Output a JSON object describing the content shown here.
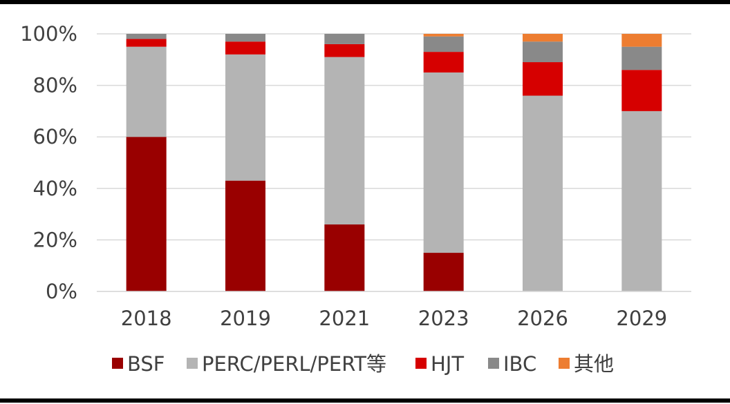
{
  "chart_data": {
    "type": "bar",
    "stacked": true,
    "percent_stacked": true,
    "title": "",
    "xlabel": "",
    "ylabel": "",
    "ylim": [
      0,
      100
    ],
    "y_tick_labels": [
      "0%",
      "20%",
      "40%",
      "60%",
      "80%",
      "100%"
    ],
    "grid": true,
    "legend_position": "bottom",
    "categories": [
      "2018",
      "2019",
      "2021",
      "2023",
      "2026",
      "2029"
    ],
    "series": [
      {
        "name": "BSF",
        "color": "#990000",
        "values": [
          60,
          43,
          26,
          15,
          0,
          0
        ]
      },
      {
        "name": "PERC/PERL/PERT等",
        "color": "#B4B4B4",
        "values": [
          35,
          49,
          65,
          70,
          76,
          70
        ]
      },
      {
        "name": "HJT",
        "color": "#D60000",
        "values": [
          3,
          5,
          5,
          8,
          13,
          16
        ]
      },
      {
        "name": "IBC",
        "color": "#898989",
        "values": [
          2,
          3,
          4,
          6,
          8,
          9
        ]
      },
      {
        "name": "其他",
        "color": "#ED7D31",
        "values": [
          0,
          0,
          0,
          1,
          3,
          5
        ]
      }
    ]
  }
}
